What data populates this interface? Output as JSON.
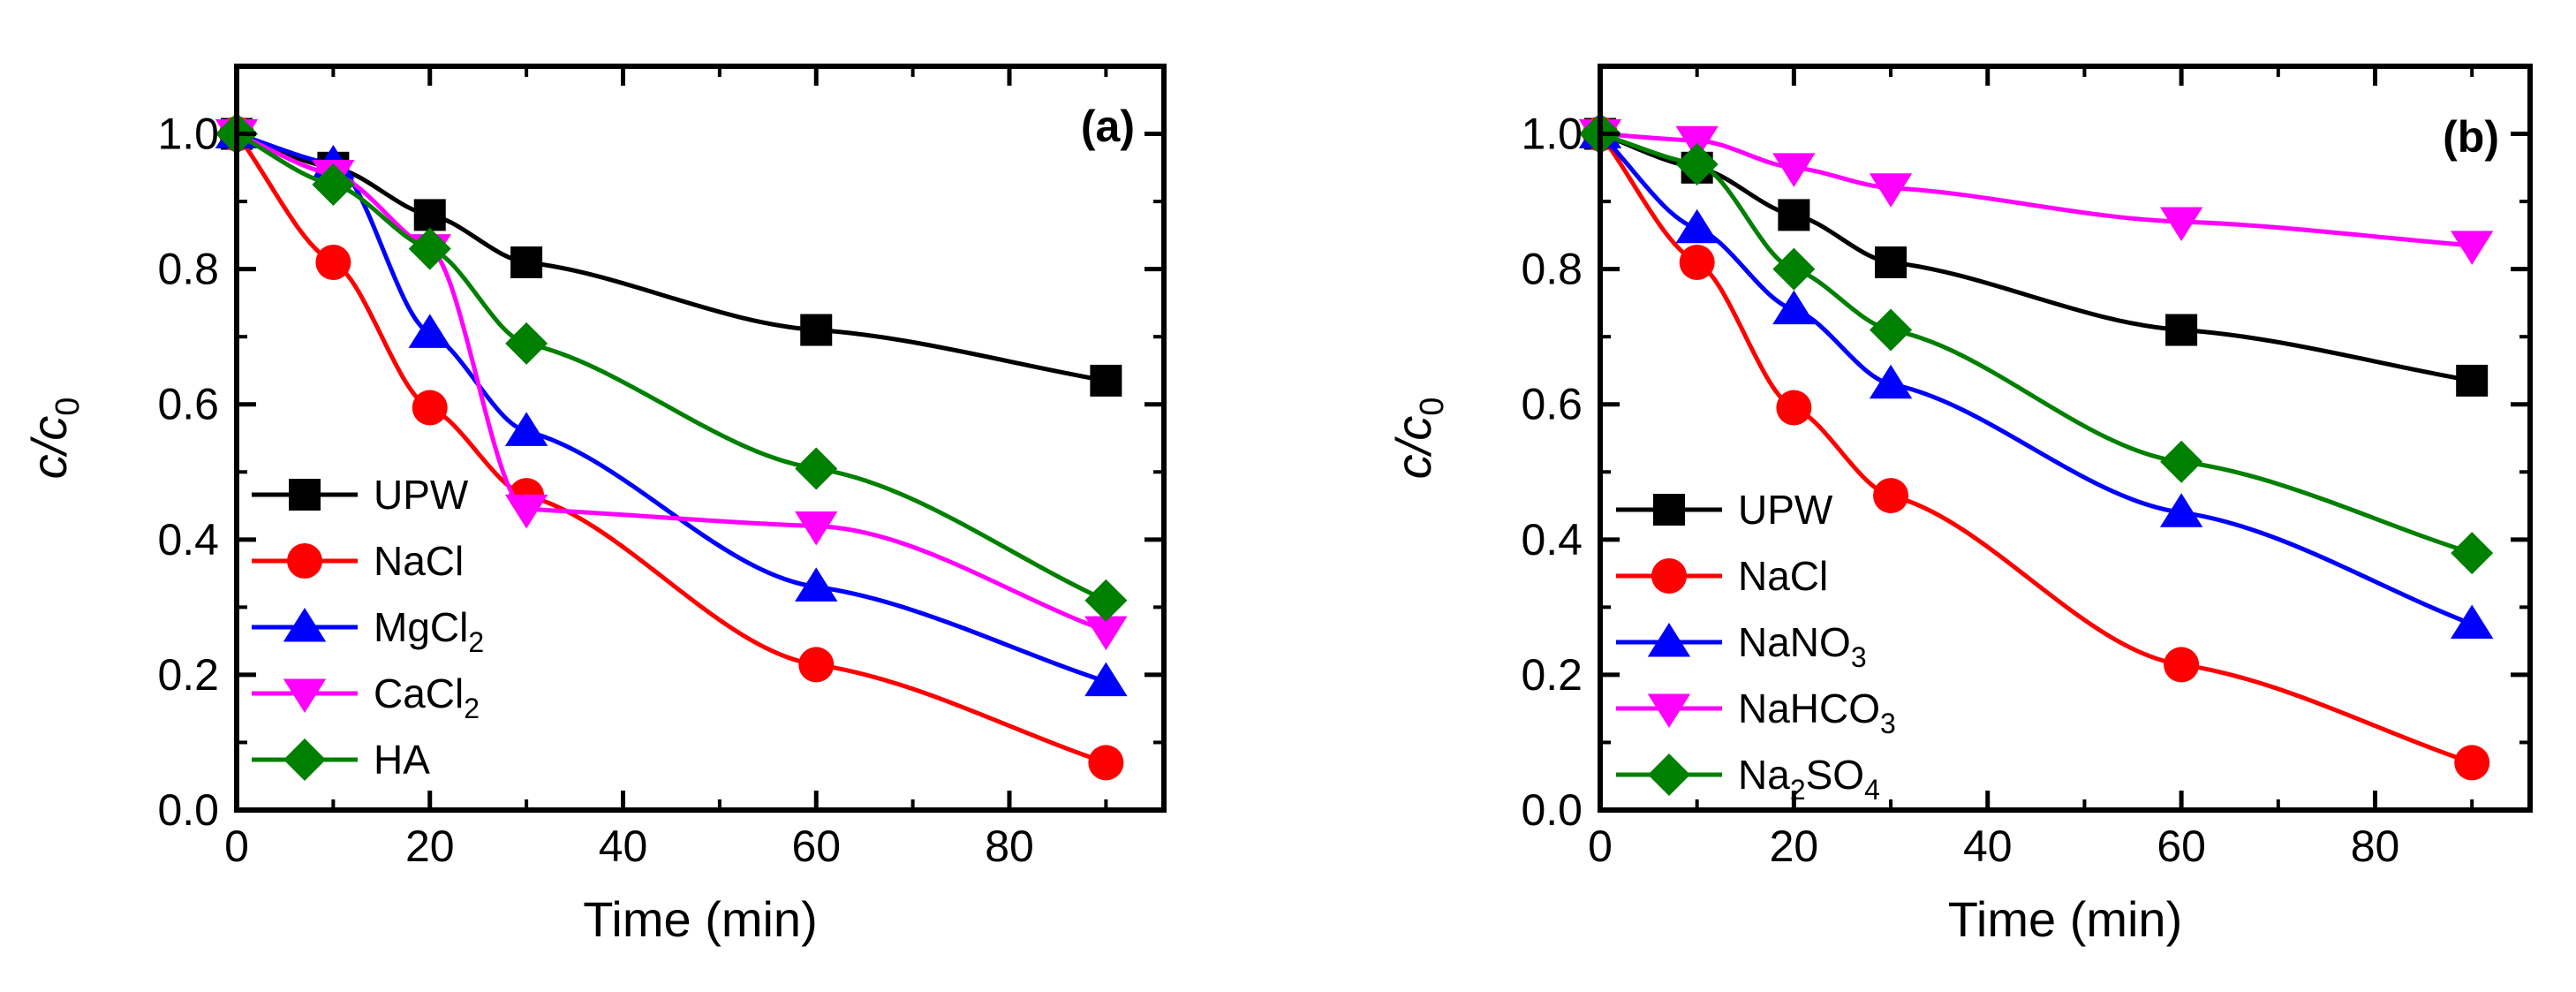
{
  "chart_data": [
    {
      "type": "line",
      "panel_label": "(a)",
      "title": "",
      "xlabel": "Time (min)",
      "ylabel": {
        "main": "c/c",
        "sub": "0"
      },
      "xlim": [
        0,
        96
      ],
      "ylim": [
        0,
        1.1
      ],
      "xticks": [
        "0",
        "20",
        "40",
        "60",
        "80"
      ],
      "yticks": [
        "0.0",
        "0.2",
        "0.4",
        "0.6",
        "0.8",
        "1.0"
      ],
      "legend_position": "left",
      "x": [
        0,
        10,
        20,
        30,
        60,
        90
      ],
      "series": [
        {
          "name": "UPW",
          "label_parts": [
            "UPW"
          ],
          "color": "#000000",
          "marker": "square",
          "values": [
            1.0,
            0.95,
            0.88,
            0.81,
            0.71,
            0.635
          ]
        },
        {
          "name": "NaCl",
          "label_parts": [
            "NaCl"
          ],
          "color": "#ff0000",
          "marker": "circle",
          "values": [
            1.0,
            0.81,
            0.595,
            0.465,
            0.215,
            0.07
          ]
        },
        {
          "name": "MgCl2",
          "label_parts": [
            "MgCl",
            "2"
          ],
          "color": "#0000ff",
          "marker": "triangle-up",
          "values": [
            1.0,
            0.955,
            0.705,
            0.56,
            0.33,
            0.19
          ]
        },
        {
          "name": "CaCl2",
          "label_parts": [
            "CaCl",
            "2"
          ],
          "color": "#ff00ff",
          "marker": "triangle-down",
          "values": [
            1.0,
            0.94,
            0.83,
            0.445,
            0.42,
            0.265
          ]
        },
        {
          "name": "HA",
          "label_parts": [
            "HA"
          ],
          "color": "#008000",
          "marker": "diamond",
          "values": [
            1.0,
            0.925,
            0.83,
            0.69,
            0.505,
            0.31
          ]
        }
      ]
    },
    {
      "type": "line",
      "panel_label": "(b)",
      "title": "",
      "xlabel": "Time (min)",
      "ylabel": {
        "main": "c/c",
        "sub": "0"
      },
      "xlim": [
        0,
        96
      ],
      "ylim": [
        0,
        1.1
      ],
      "xticks": [
        "0",
        "20",
        "40",
        "60",
        "80"
      ],
      "yticks": [
        "0.0",
        "0.2",
        "0.4",
        "0.6",
        "0.8",
        "1.0"
      ],
      "legend_position": "left",
      "x": [
        0,
        10,
        20,
        30,
        60,
        90
      ],
      "series": [
        {
          "name": "UPW",
          "label_parts": [
            "UPW"
          ],
          "color": "#000000",
          "marker": "square",
          "values": [
            1.0,
            0.95,
            0.88,
            0.81,
            0.71,
            0.635
          ]
        },
        {
          "name": "NaCl",
          "label_parts": [
            "NaCl"
          ],
          "color": "#ff0000",
          "marker": "circle",
          "values": [
            1.0,
            0.81,
            0.595,
            0.465,
            0.215,
            0.07
          ]
        },
        {
          "name": "NaNO3",
          "label_parts": [
            "NaNO",
            "3"
          ],
          "color": "#0000ff",
          "marker": "triangle-up",
          "values": [
            1.0,
            0.86,
            0.74,
            0.63,
            0.44,
            0.275
          ]
        },
        {
          "name": "NaHCO3",
          "label_parts": [
            "NaHCO",
            "3"
          ],
          "color": "#ff00ff",
          "marker": "triangle-down",
          "values": [
            1.0,
            0.99,
            0.95,
            0.92,
            0.87,
            0.835
          ]
        },
        {
          "name": "Na2SO4",
          "label_parts": [
            "Na",
            "2",
            "SO",
            "4"
          ],
          "color": "#008000",
          "marker": "diamond",
          "values": [
            1.0,
            0.955,
            0.8,
            0.71,
            0.515,
            0.38
          ]
        }
      ]
    }
  ]
}
